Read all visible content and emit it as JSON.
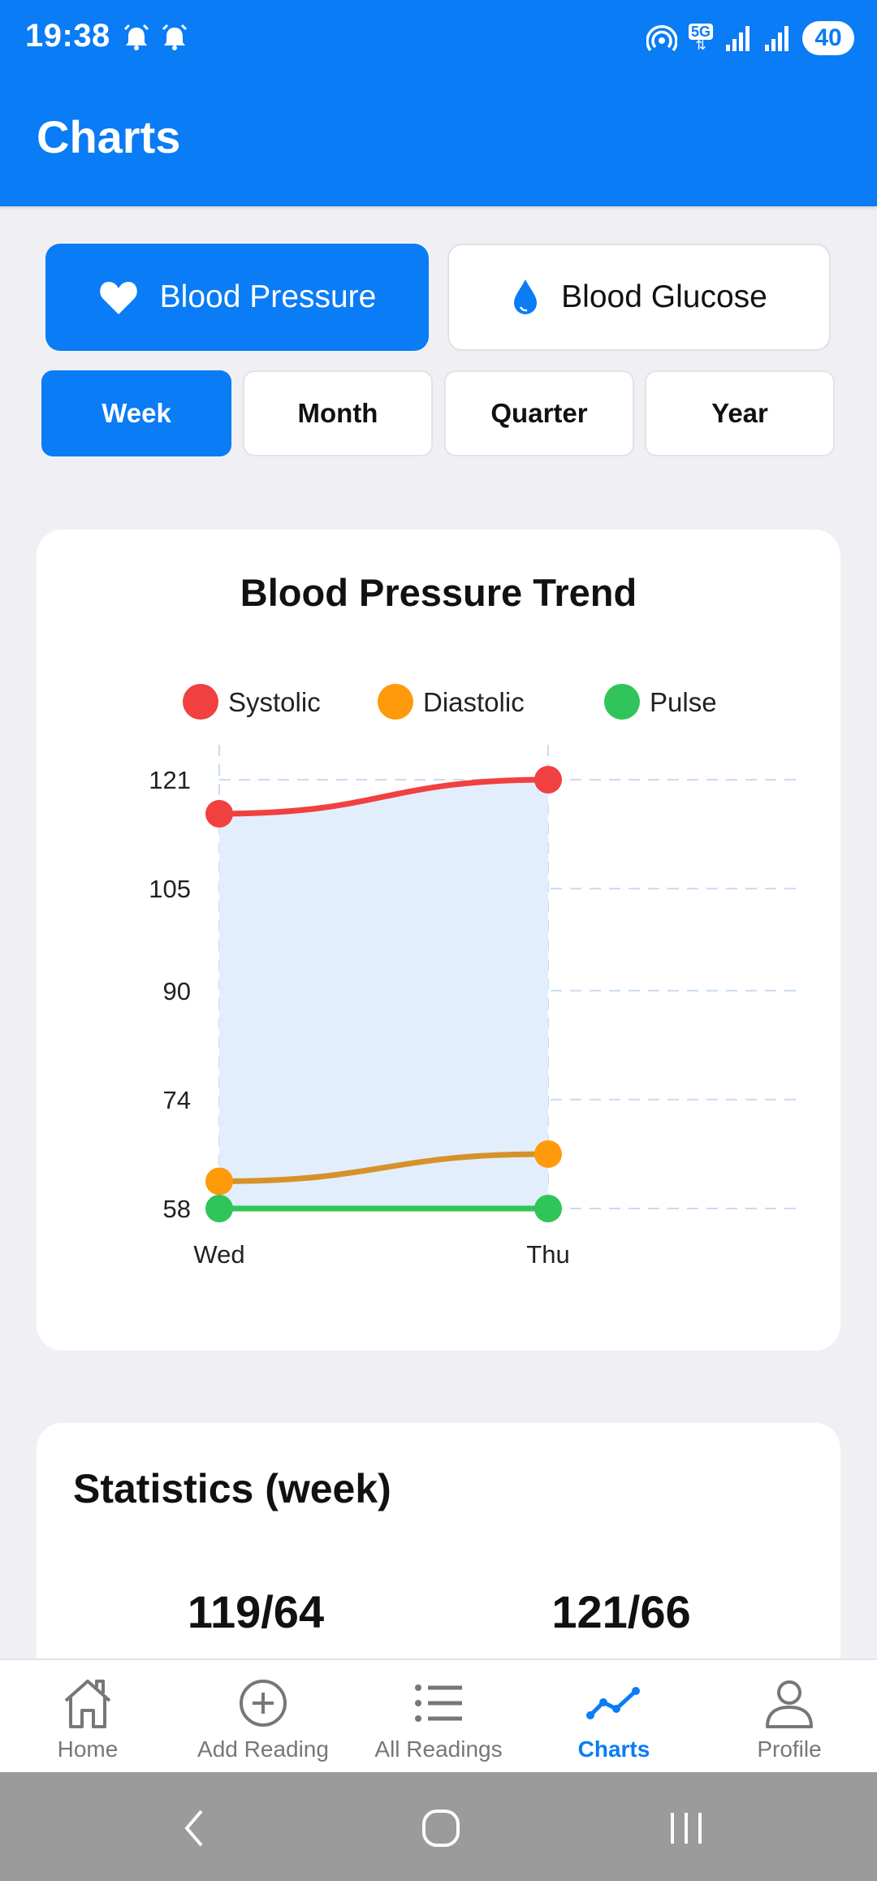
{
  "status_bar": {
    "time": "19:38",
    "network": "5G",
    "battery": "40"
  },
  "app_bar": {
    "title": "Charts"
  },
  "metric_tabs": [
    {
      "label": "Blood Pressure",
      "icon": "heart-icon",
      "active": true
    },
    {
      "label": "Blood Glucose",
      "icon": "drop-icon",
      "active": false
    }
  ],
  "period_tabs": [
    {
      "label": "Week",
      "active": true
    },
    {
      "label": "Month",
      "active": false
    },
    {
      "label": "Quarter",
      "active": false
    },
    {
      "label": "Year",
      "active": false
    }
  ],
  "chart_data": {
    "type": "line",
    "title": "Blood Pressure Trend",
    "categories": [
      "Wed",
      "Thu"
    ],
    "y_ticks": [
      "121",
      "105",
      "90",
      "74",
      "58"
    ],
    "ylim": [
      58,
      121
    ],
    "grid": true,
    "legend_position": "top",
    "series": [
      {
        "name": "Systolic",
        "color": "#f04040",
        "values": [
          116,
          121
        ]
      },
      {
        "name": "Diastolic",
        "color": "#ff9a0a",
        "values": [
          62,
          66
        ]
      },
      {
        "name": "Pulse",
        "color": "#31c45a",
        "values": [
          58,
          58
        ]
      }
    ]
  },
  "statistics": {
    "title": "Statistics (week)",
    "values": [
      "119/64",
      "121/66"
    ]
  },
  "bottom_nav": [
    {
      "label": "Home",
      "icon": "home-icon",
      "active": false
    },
    {
      "label": "Add Reading",
      "icon": "add-circle-icon",
      "active": false
    },
    {
      "label": "All Readings",
      "icon": "list-icon",
      "active": false
    },
    {
      "label": "Charts",
      "icon": "chart-line-icon",
      "active": true
    },
    {
      "label": "Profile",
      "icon": "profile-icon",
      "active": false
    }
  ],
  "colors": {
    "primary": "#0a7cf5",
    "background": "#f0f0f4"
  }
}
